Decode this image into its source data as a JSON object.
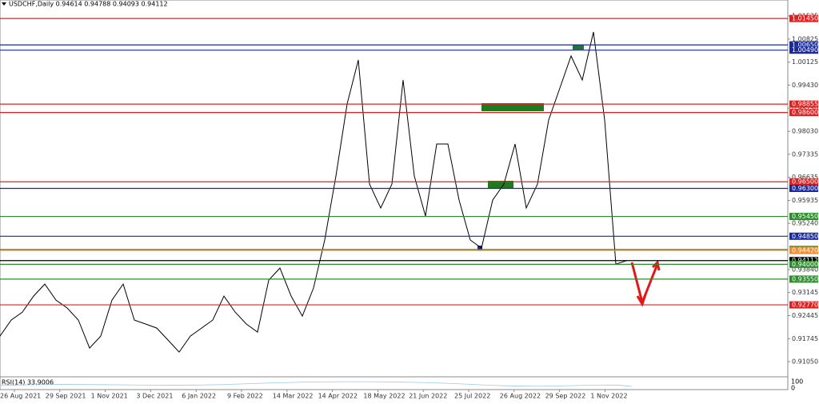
{
  "chart_data": {
    "type": "line",
    "title": "USDCHF,Daily  0.94614 0.94788 0.94093 0.94112",
    "indicator_label": "RSI(14) 33.9006",
    "indicator_ticks": [
      "100",
      "0"
    ],
    "x_labels": [
      "26 Aug 2021",
      "29 Sep 2021",
      "1 Nov 2021",
      "3 Dec 2021",
      "6 Jan 2022",
      "9 Feb 2022",
      "14 Mar 2022",
      "14 Apr 2022",
      "18 May 2022",
      "21 Jun 2022",
      "25 Jul 2022",
      "26 Aug 2022",
      "29 Sep 2022",
      "1 Nov 2022"
    ],
    "series": [
      {
        "name": "USDCHF",
        "color": "#000000",
        "values": [
          0.91825,
          0.9231,
          0.92552,
          0.93037,
          0.93401,
          0.92916,
          0.92674,
          0.9231,
          0.91461,
          0.91825,
          0.92916,
          0.93401,
          0.9231,
          0.92189,
          0.92067,
          0.91704,
          0.9134,
          0.91825,
          0.92067,
          0.9231,
          0.93037,
          0.92552,
          0.92189,
          0.91946,
          0.93522,
          0.93886,
          0.93037,
          0.92431,
          0.9328,
          0.94735,
          0.96675,
          0.98857,
          1.00191,
          0.96432,
          0.95705,
          0.96432,
          0.99585,
          0.96675,
          0.95462,
          0.97645,
          0.97645,
          0.95947,
          0.94735,
          0.94492,
          0.95947,
          0.96432,
          0.97645,
          0.95705,
          0.96432,
          0.98372,
          0.99342,
          1.00312,
          0.99585,
          1.0104,
          0.98372,
          0.94007,
          0.94112
        ]
      }
    ],
    "ylim": [
      0.90614,
      1.01816
    ],
    "yticks": [
      1.01525,
      1.00825,
      1.00125,
      {
        "value": 0.9943,
        "label": "0.99430"
      },
      {
        "value": 0.9873,
        "label": "0.98730"
      },
      {
        "value": 0.9803,
        "label": "0.98030"
      },
      0.97335,
      0.96635,
      0.95935,
      {
        "value": 0.9524,
        "label": "0.95240"
      },
      {
        "value": 0.9384,
        "label": "0.93840"
      },
      0.93145,
      0.92445,
      0.91745,
      {
        "value": 0.9105,
        "label": "0.91050"
      }
    ],
    "levels": [
      {
        "price": {
          "value": 1.0145,
          "label": "1.01450"
        },
        "color": "#e02020"
      },
      {
        "price": {
          "value": 1.0065,
          "label": "1.00650"
        },
        "color": "#1a2a9c"
      },
      {
        "price": {
          "value": 1.0049,
          "label": "1.00490"
        },
        "color": "#1a2a9c"
      },
      {
        "price": 0.98855,
        "color": "#e02020"
      },
      {
        "price": {
          "value": 0.986,
          "label": "0.98600"
        },
        "color": "#e02020"
      },
      {
        "price": {
          "value": 0.965,
          "label": "0.96500"
        },
        "color": "#e02020"
      },
      {
        "price": {
          "value": 0.963,
          "label": "0.96300"
        },
        "color": "#1a2a9c"
      },
      {
        "price": {
          "value": 0.9545,
          "label": "0.95450"
        },
        "color": "#2e8b2e"
      },
      {
        "price": {
          "value": 0.9485,
          "label": "0.94850"
        },
        "color": "#1a2a9c"
      },
      {
        "price": {
          "value": 0.9445,
          "label": "0.94450"
        },
        "color": "#2e8b2e"
      },
      {
        "price": {
          "value": 0.9442,
          "label": "0.94420"
        },
        "color": "#f08a30"
      },
      {
        "price": 0.94112,
        "color": "#000000"
      },
      {
        "price": {
          "value": 0.94,
          "label": "0.94000"
        },
        "color": "#2e8b2e"
      },
      {
        "price": {
          "value": 0.9355,
          "label": "0.93550"
        },
        "color": "#2e8b2e"
      },
      {
        "price": {
          "value": 0.9277,
          "label": "0.92770"
        },
        "color": "#e02020"
      }
    ]
  }
}
